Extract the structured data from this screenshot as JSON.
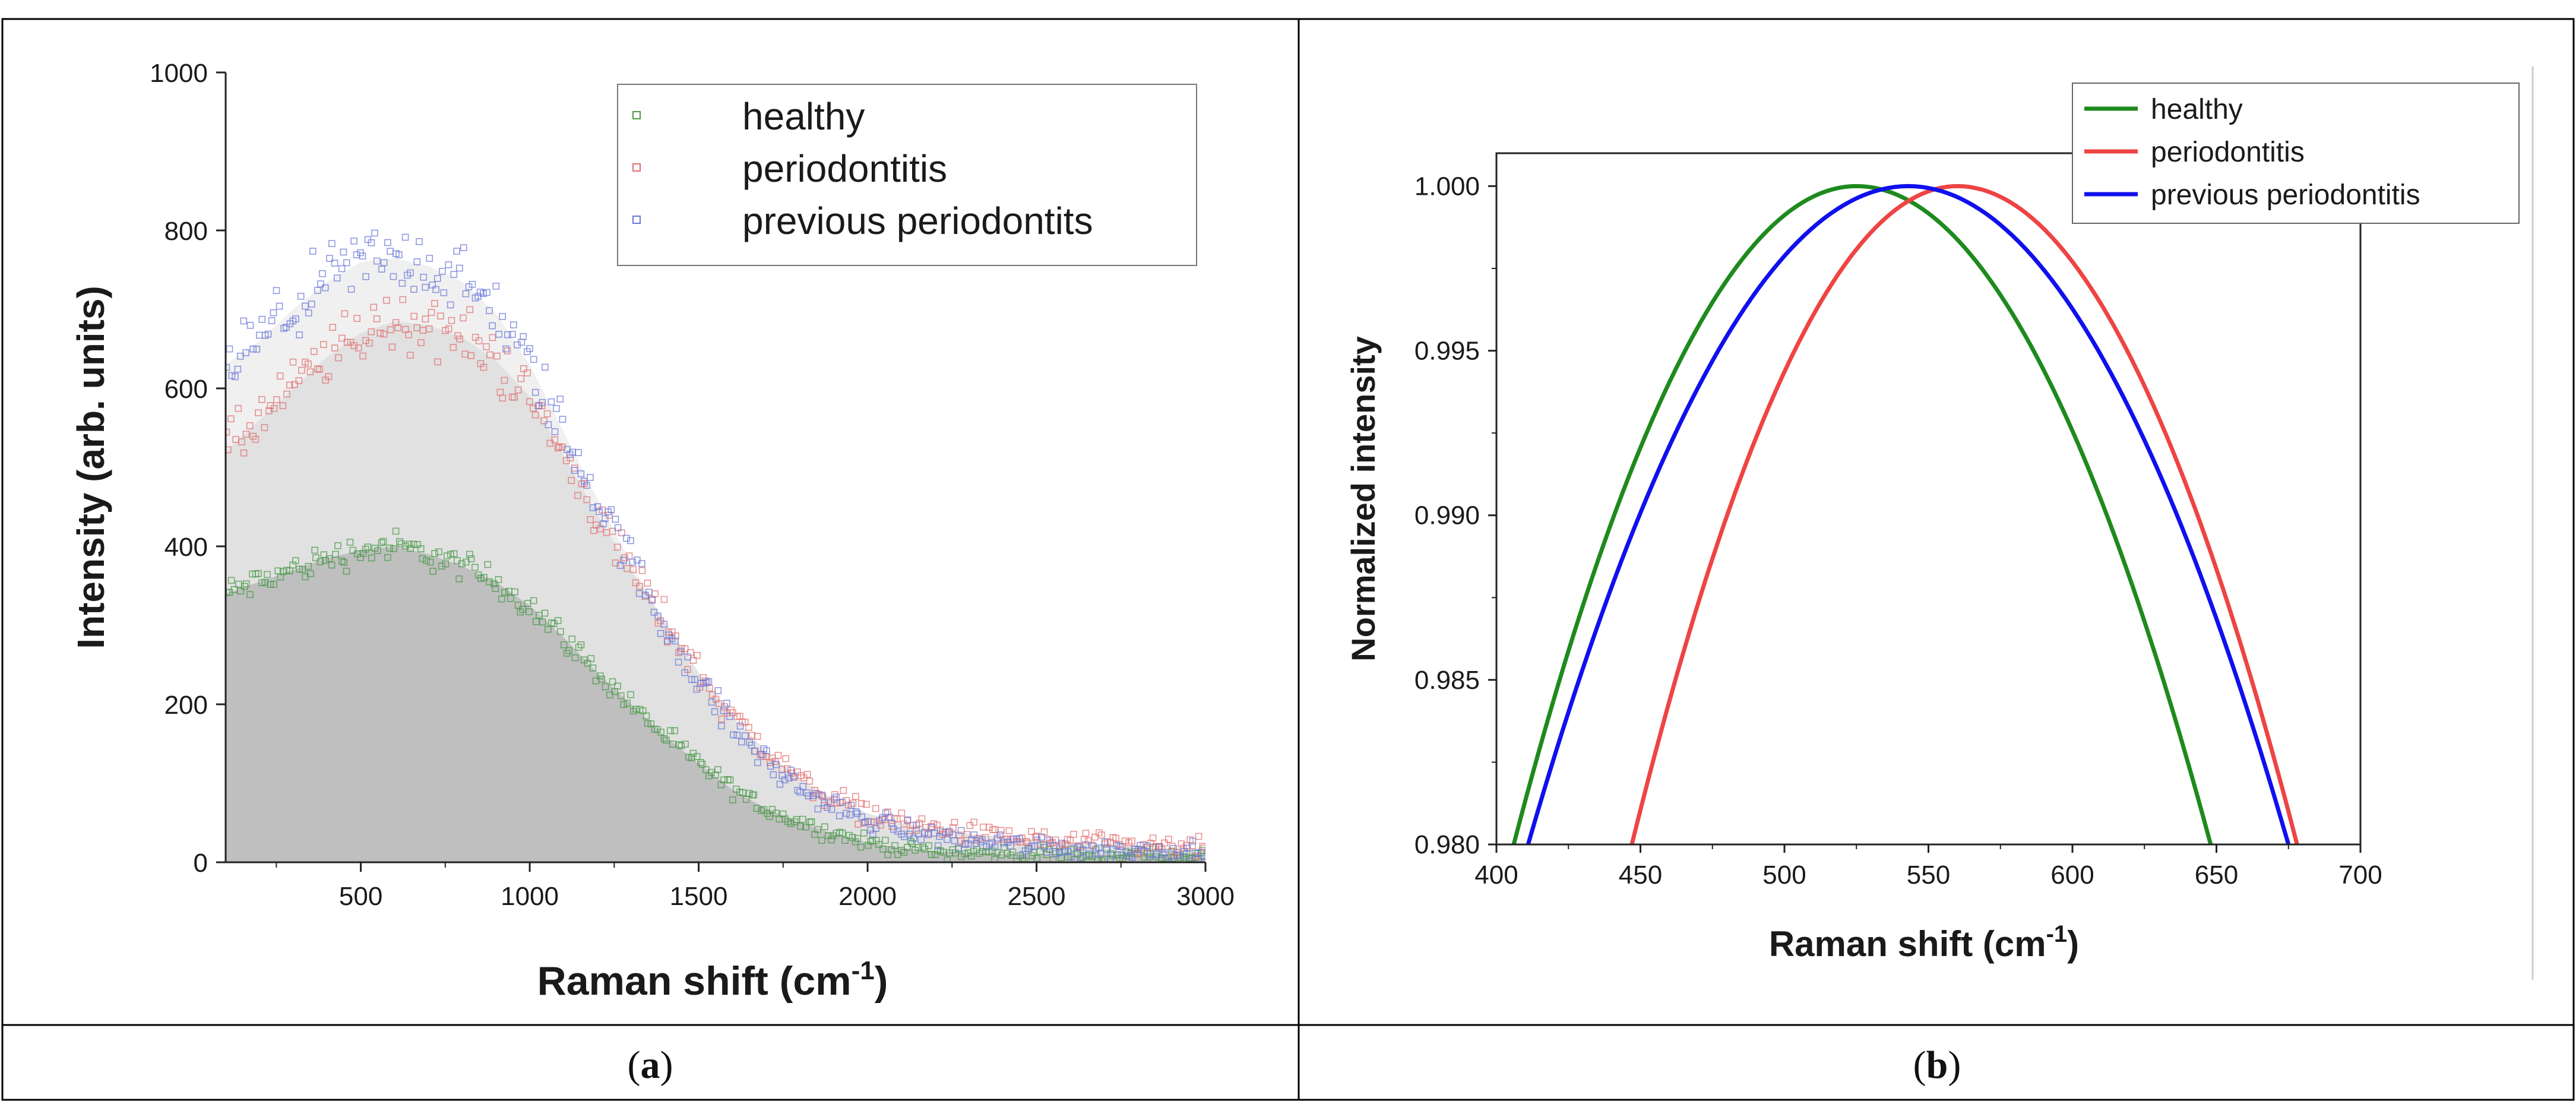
{
  "captions": {
    "a_open": "(",
    "a_letter": "a",
    "a_close": ")",
    "b_open": "(",
    "b_letter": "b",
    "b_close": ")"
  },
  "chart_data": [
    {
      "id": "a",
      "type": "scatter",
      "title": "",
      "xlabel_main": "Raman shift (cm",
      "xlabel_sup": "-1",
      "xlabel_end": ")",
      "ylabel": "Intensity (arb. units)",
      "xlim": [
        100,
        3000
      ],
      "ylim": [
        0,
        1000
      ],
      "xticks": [
        500,
        1000,
        1500,
        2000,
        2500,
        3000
      ],
      "yticks": [
        0,
        200,
        400,
        600,
        800,
        1000
      ],
      "legend": {
        "position": "top-right",
        "entries": [
          "healthy",
          "periodontitis",
          "previous periodontits"
        ]
      },
      "series": [
        {
          "name": "healthy",
          "color": "#4a9a4a",
          "x": [
            100,
            200,
            300,
            400,
            500,
            600,
            700,
            800,
            900,
            1000,
            1100,
            1200,
            1300,
            1400,
            1500,
            1600,
            1700,
            1800,
            1900,
            2000,
            2100,
            2200,
            2300,
            2400,
            2500,
            2600,
            2700,
            2800,
            2900,
            3000
          ],
          "y": [
            340,
            355,
            370,
            385,
            395,
            400,
            390,
            375,
            355,
            325,
            285,
            240,
            200,
            160,
            125,
            92,
            68,
            50,
            36,
            25,
            18,
            14,
            12,
            11,
            10,
            10,
            10,
            10,
            10,
            10
          ]
        },
        {
          "name": "periodontitis",
          "color": "#e07070",
          "x": [
            100,
            200,
            300,
            400,
            500,
            600,
            700,
            800,
            900,
            1000,
            1100,
            1200,
            1300,
            1400,
            1500,
            1600,
            1700,
            1800,
            1900,
            2000,
            2100,
            2200,
            2300,
            2400,
            2500,
            2600,
            2700,
            2800,
            2900,
            3000
          ],
          "y": [
            520,
            560,
            600,
            640,
            670,
            685,
            680,
            665,
            635,
            590,
            515,
            440,
            370,
            305,
            240,
            185,
            140,
            105,
            80,
            62,
            50,
            42,
            36,
            32,
            28,
            25,
            22,
            20,
            18,
            17
          ]
        },
        {
          "name": "previous periodontits",
          "color": "#6a78d8",
          "x": [
            100,
            200,
            300,
            400,
            500,
            600,
            700,
            800,
            900,
            1000,
            1100,
            1200,
            1300,
            1400,
            1500,
            1600,
            1700,
            1800,
            1900,
            2000,
            2100,
            2200,
            2300,
            2400,
            2500,
            2600,
            2700,
            2800,
            2900,
            3000
          ],
          "y": [
            630,
            660,
            700,
            735,
            760,
            765,
            755,
            735,
            695,
            630,
            545,
            460,
            380,
            300,
            230,
            172,
            128,
            94,
            70,
            54,
            42,
            34,
            28,
            24,
            21,
            18,
            16,
            15,
            14,
            13
          ]
        }
      ]
    },
    {
      "id": "b",
      "type": "line",
      "title": "",
      "xlabel_main": "Raman shift (cm",
      "xlabel_sup": "-1",
      "xlabel_end": ")",
      "ylabel": "Normalized intensity",
      "xlim": [
        400,
        700
      ],
      "ylim": [
        0.98,
        1.001
      ],
      "xticks": [
        400,
        450,
        500,
        550,
        600,
        650,
        700
      ],
      "yticks": [
        0.98,
        0.985,
        0.99,
        0.995,
        1.0
      ],
      "ytick_labels": [
        "0.980",
        "0.985",
        "0.990",
        "0.995",
        "1.000"
      ],
      "legend": {
        "position": "top-right",
        "entries": [
          "healthy",
          "periodontitis",
          "previous periodontitis"
        ]
      },
      "series": [
        {
          "name": "healthy",
          "color": "#1e8a1e",
          "peak_x": 525,
          "x_at_0_98": [
            406,
            648
          ]
        },
        {
          "name": "periodontitis",
          "color": "#ee4444",
          "peak_x": 560,
          "x_at_0_98": [
            447,
            678
          ]
        },
        {
          "name": "previous periodontitis",
          "color": "#1010ee",
          "peak_x": 543,
          "x_at_0_98": [
            411,
            675
          ]
        }
      ]
    }
  ]
}
